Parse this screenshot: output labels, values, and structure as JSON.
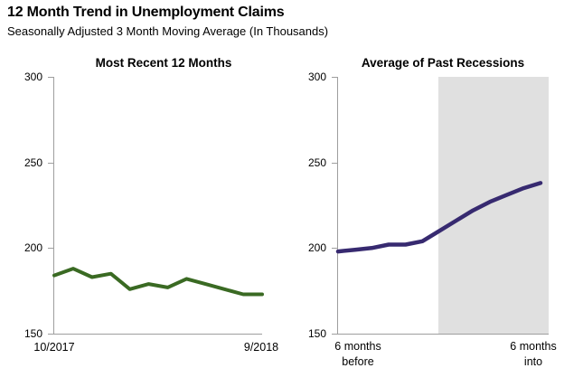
{
  "header": {
    "title": "12 Month Trend in Unemployment Claims",
    "subtitle": "Seasonally Adjusted 3 Month Moving Average (In Thousands)"
  },
  "colors": {
    "axis": "#9e9e9e",
    "recent_line": "#3a6a23",
    "recession_line": "#372a70",
    "recession_shading": "#e0e0e0"
  },
  "chart_data": [
    {
      "type": "line",
      "title": "Most Recent 12 Months",
      "x_start_label": "10/2017",
      "x_end_label": "9/2018",
      "values": [
        184,
        188,
        183,
        185,
        176,
        179,
        177,
        182,
        179,
        176,
        173,
        173
      ],
      "ylim": [
        150,
        300
      ],
      "yticks": [
        "300",
        "250",
        "200",
        "150"
      ],
      "line_color": "#3a6a23",
      "grid": false,
      "legend": false
    },
    {
      "type": "line",
      "title": "Average of Past Recessions",
      "x_start_label": [
        "6 months",
        "before"
      ],
      "x_end_label": [
        "6 months",
        "into"
      ],
      "values": [
        198,
        199,
        200,
        202,
        202,
        204,
        210,
        216,
        222,
        227,
        231,
        235,
        238
      ],
      "ylim": [
        150,
        300
      ],
      "yticks": [
        "300",
        "250",
        "200",
        "150"
      ],
      "line_color": "#372a70",
      "grid": false,
      "legend": false,
      "shading": {
        "start_index": 6,
        "extends_to_plot_right_edge": true,
        "color": "#e0e0e0"
      }
    }
  ]
}
